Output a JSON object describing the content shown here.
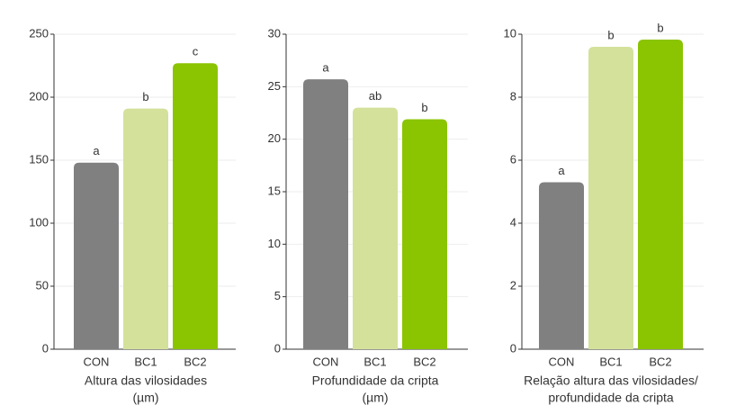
{
  "chart_data": [
    {
      "type": "bar",
      "categories": [
        "CON",
        "BC1",
        "BC2"
      ],
      "values": [
        148,
        191,
        227
      ],
      "annotations": [
        "a",
        "b",
        "c"
      ],
      "colors": [
        "#808080",
        "#d3e19b",
        "#8bc400"
      ],
      "xlabel": [
        "Altura das vilosidades",
        "(µm)"
      ],
      "ylim": [
        0,
        250
      ],
      "yticks": [
        0,
        50,
        100,
        150,
        200,
        250
      ],
      "grid": true
    },
    {
      "type": "bar",
      "categories": [
        "CON",
        "BC1",
        "BC2"
      ],
      "values": [
        25.7,
        23.0,
        21.9
      ],
      "annotations": [
        "a",
        "ab",
        "b"
      ],
      "colors": [
        "#808080",
        "#d3e19b",
        "#8bc400"
      ],
      "xlabel": [
        "Profundidade da cripta",
        "(µm)"
      ],
      "ylim": [
        0,
        30
      ],
      "yticks": [
        0,
        5,
        10,
        15,
        20,
        25,
        30
      ],
      "grid": true
    },
    {
      "type": "bar",
      "categories": [
        "CON",
        "BC1",
        "BC2"
      ],
      "values": [
        5.3,
        9.6,
        9.83
      ],
      "annotations": [
        "a",
        "b",
        "b"
      ],
      "colors": [
        "#808080",
        "#d3e19b",
        "#8bc400"
      ],
      "xlabel": [
        "Relação altura das vilosidades/",
        "profundidade da cripta"
      ],
      "ylim": [
        0,
        10
      ],
      "yticks": [
        0,
        2,
        4,
        6,
        8,
        10
      ],
      "grid": true
    }
  ]
}
